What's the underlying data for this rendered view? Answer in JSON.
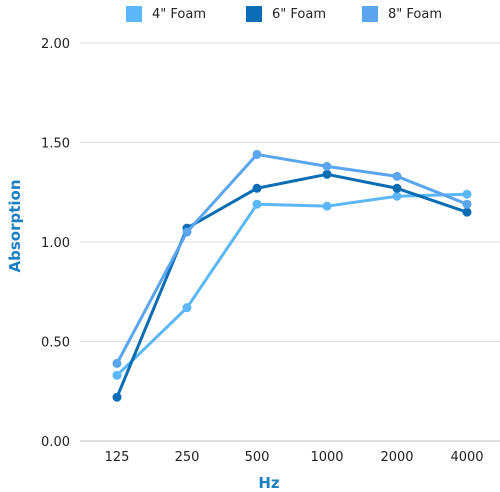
{
  "chart_data": {
    "type": "line",
    "title": "",
    "xlabel": "Hz",
    "ylabel": "Absorption",
    "categories": [
      "125",
      "250",
      "500",
      "1000",
      "2000",
      "4000"
    ],
    "ylim": [
      0,
      2
    ],
    "yticks": [
      "0.00",
      "0.50",
      "1.00",
      "1.50",
      "2.00"
    ],
    "grid": true,
    "legend_position": "top",
    "series": [
      {
        "name": "4\" Foam",
        "color": "#5bb7f7",
        "values": [
          0.33,
          0.67,
          1.19,
          1.18,
          1.23,
          1.24
        ]
      },
      {
        "name": "6\" Foam",
        "color": "#0b6db3",
        "values": [
          0.22,
          1.07,
          1.27,
          1.34,
          1.27,
          1.15
        ]
      },
      {
        "name": "8\" Foam",
        "color": "#5aa5ee",
        "values": [
          0.39,
          1.05,
          1.44,
          1.38,
          1.33,
          1.19
        ]
      }
    ]
  }
}
